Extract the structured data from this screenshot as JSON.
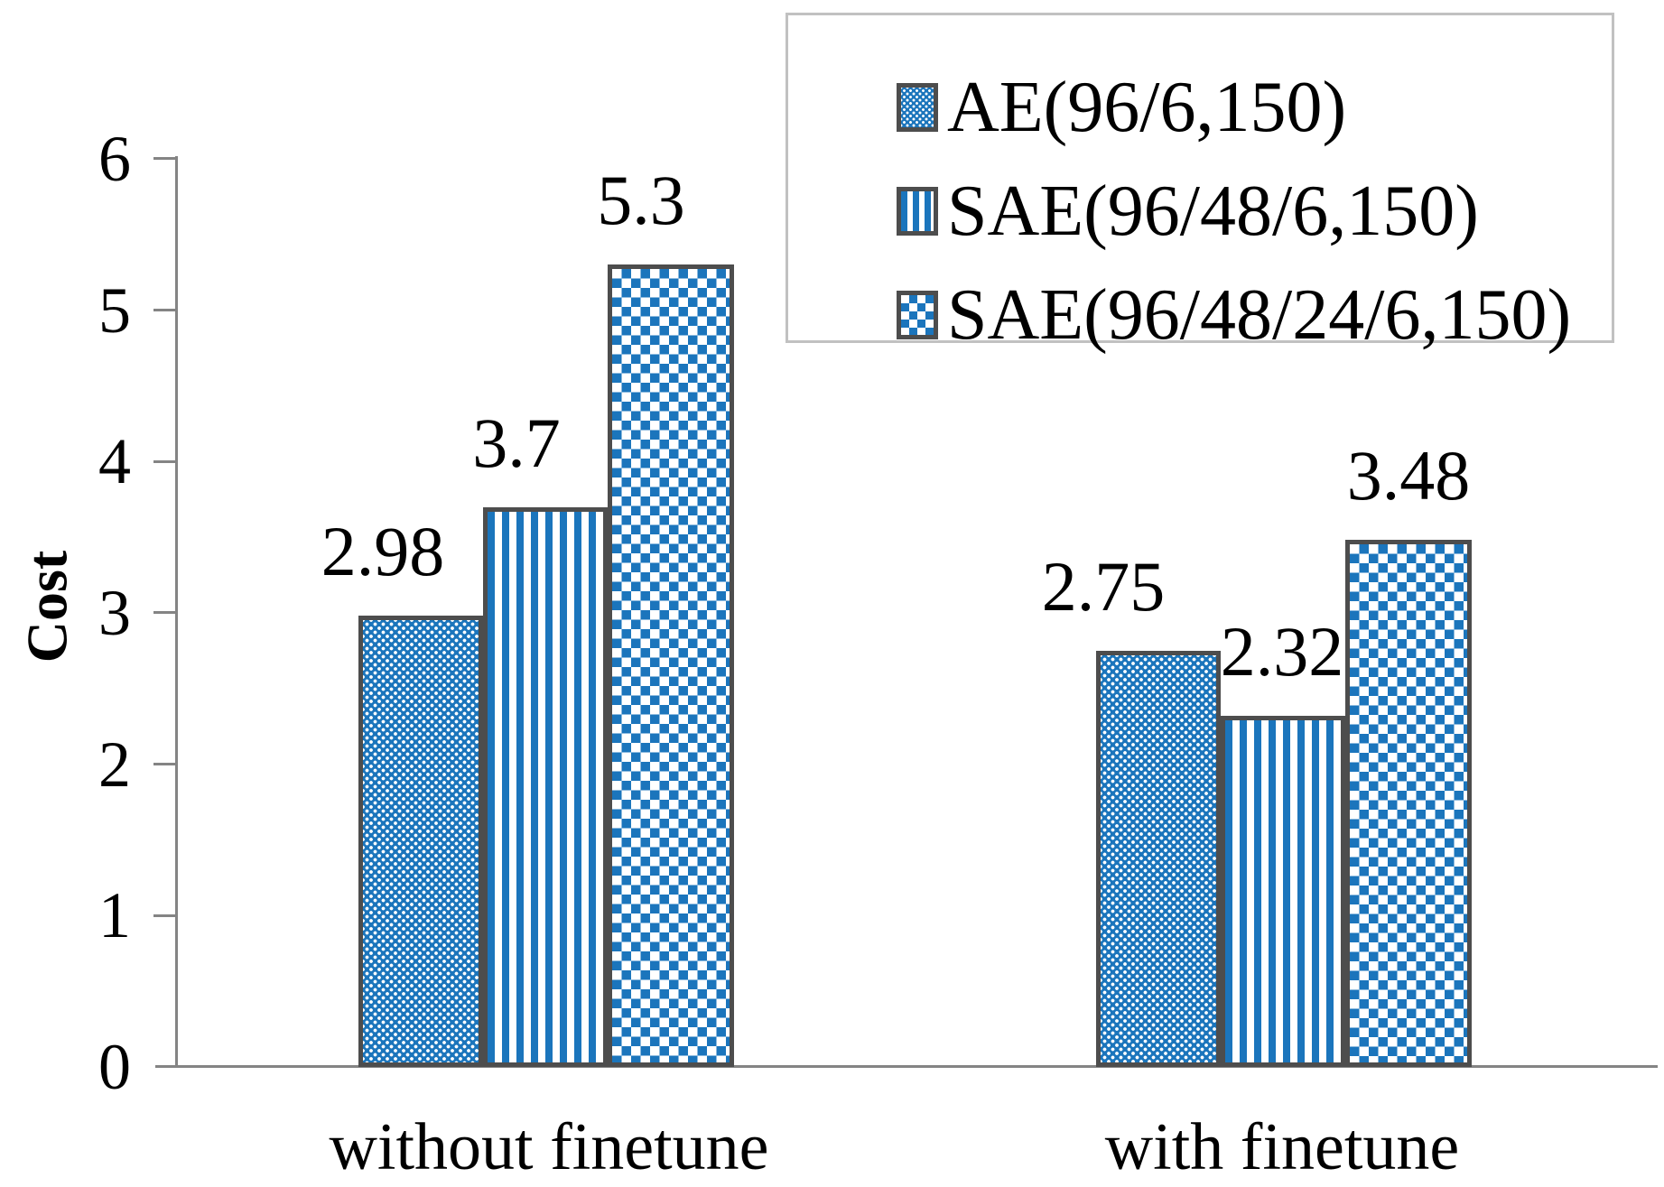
{
  "chart_data": {
    "type": "bar",
    "title": "",
    "xlabel": "",
    "ylabel": "Cost",
    "ylim": [
      0,
      6
    ],
    "yticks": [
      0,
      1,
      2,
      3,
      4,
      5,
      6
    ],
    "grid": false,
    "legend_position": "top-right",
    "categories": [
      "without finetune",
      "with finetune"
    ],
    "series": [
      {
        "name": "AE(96/6,150)",
        "pattern": "blue-dots",
        "values": [
          2.98,
          2.75
        ]
      },
      {
        "name": "SAE(96/48/6,150)",
        "pattern": "blue-vertical-stripes",
        "values": [
          3.7,
          2.32
        ]
      },
      {
        "name": "SAE(96/48/24/6,150)",
        "pattern": "blue-checker",
        "values": [
          5.3,
          3.48
        ]
      }
    ],
    "colors": {
      "bar_fill_blue": "#1B75BC",
      "bar_border": "#4D4D4D",
      "axis_line": "#848484",
      "legend_border": "#C1C1C1",
      "text": "#000000",
      "background": "#FFFFFF"
    }
  }
}
